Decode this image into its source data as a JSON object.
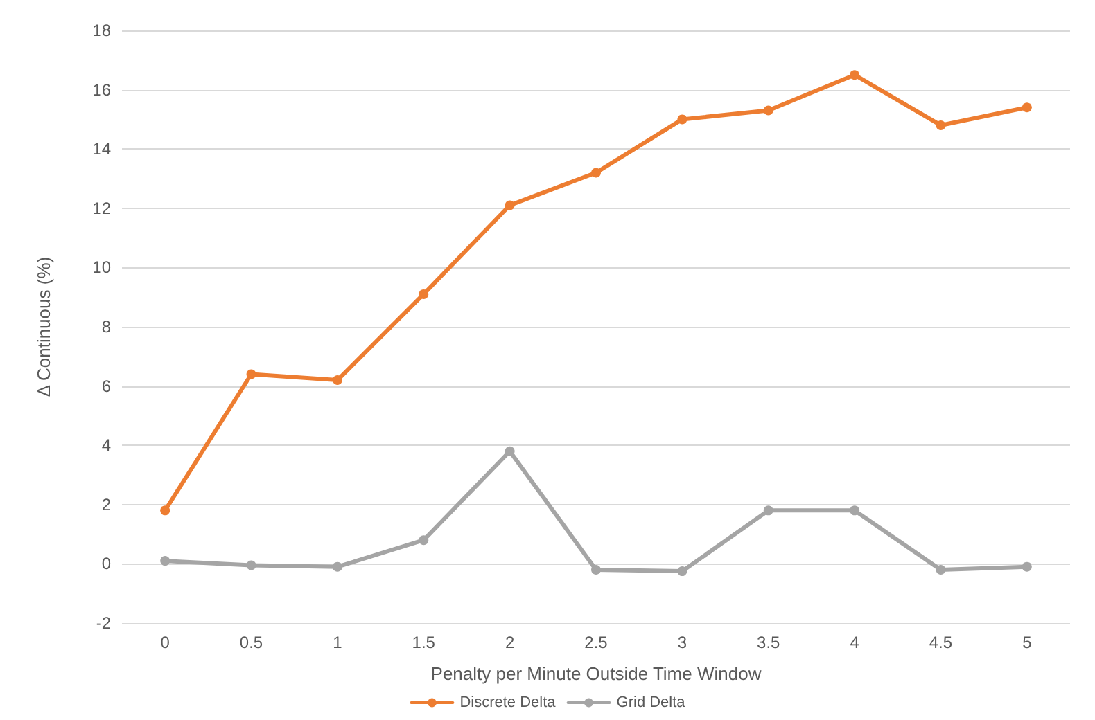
{
  "chart_data": {
    "type": "line",
    "xlabel": "Penalty per Minute Outside Time Window",
    "ylabel": "Δ Continuous (%)",
    "categories": [
      "0",
      "0.5",
      "1",
      "1.5",
      "2",
      "2.5",
      "3",
      "3.5",
      "4",
      "4.5",
      "5"
    ],
    "series": [
      {
        "name": "Discrete Delta",
        "color": "#ed7d31",
        "values": [
          1.8,
          6.4,
          6.2,
          9.1,
          12.1,
          13.2,
          15.0,
          15.3,
          16.5,
          14.8,
          15.4
        ]
      },
      {
        "name": "Grid Delta",
        "color": "#a5a5a5",
        "values": [
          0.1,
          -0.05,
          -0.1,
          0.8,
          3.8,
          -0.2,
          -0.25,
          1.8,
          1.8,
          -0.2,
          -0.1
        ]
      }
    ],
    "ylim": [
      -2,
      18
    ],
    "yticks": [
      -2,
      0,
      2,
      4,
      6,
      8,
      10,
      12,
      14,
      16,
      18
    ],
    "grid": "y",
    "legend": "bottom",
    "marker": "circle",
    "line_style": "solid"
  }
}
